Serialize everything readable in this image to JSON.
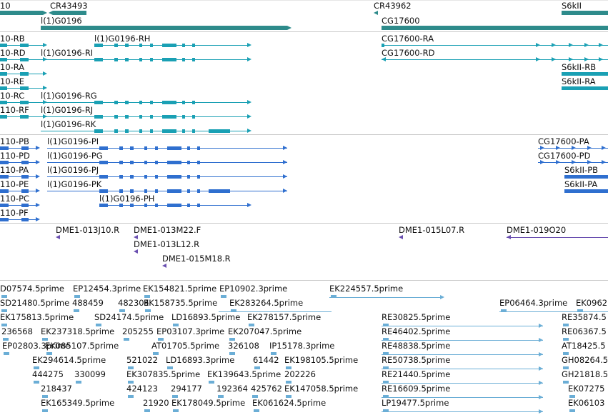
{
  "colors": {
    "gene": "#2e8b8b",
    "teal": "#1aa0b4",
    "blue": "#2f6fcf",
    "purple": "#6a4fb0",
    "est": "#6baed6",
    "sep": "#c8c8c8"
  },
  "genes": [
    {
      "label": "10",
      "name": "gene-10"
    },
    {
      "label": "CR43493",
      "name": "gene-cr43493"
    },
    {
      "label": "l(1)G0196",
      "name": "gene-l1g0196"
    },
    {
      "label": "CR43962",
      "name": "gene-cr43962"
    },
    {
      "label": "CG17600",
      "name": "gene-cg17600"
    },
    {
      "label": "S6kII",
      "name": "gene-s6kii"
    }
  ],
  "transcripts_teal": [
    {
      "label": "10-RB"
    },
    {
      "label": "l(1)G0196-RH"
    },
    {
      "label": "CG17600-RA"
    },
    {
      "label": "10-RD"
    },
    {
      "label": "l(1)G0196-RI"
    },
    {
      "label": "CG17600-RD"
    },
    {
      "label": "10-RA"
    },
    {
      "label": "S6kII-RB"
    },
    {
      "label": "10-RE"
    },
    {
      "label": "S6kII-RA"
    },
    {
      "label": "10-RC"
    },
    {
      "label": "l(1)G0196-RG"
    },
    {
      "label": "110-RF"
    },
    {
      "label": "l(1)G0196-RJ"
    },
    {
      "label": "l(1)G0196-RK"
    }
  ],
  "transcripts_blue": [
    {
      "label": "110-PB"
    },
    {
      "label": "l(1)G0196-PI"
    },
    {
      "label": "CG17600-PA"
    },
    {
      "label": "110-PD"
    },
    {
      "label": "l(1)G0196-PG"
    },
    {
      "label": "CG17600-PD"
    },
    {
      "label": "110-PA"
    },
    {
      "label": "l(1)G0196-PJ"
    },
    {
      "label": "S6kII-PB"
    },
    {
      "label": "110-PE"
    },
    {
      "label": "l(1)G0196-PK"
    },
    {
      "label": "S6kII-PA"
    },
    {
      "label": "110-PC"
    },
    {
      "label": "l(1)G0196-PH"
    },
    {
      "label": "110-PF"
    }
  ],
  "clones": [
    {
      "label": "DME1-013J10.R"
    },
    {
      "label": "DME1-013M22.F"
    },
    {
      "label": "DME1-013L12.R"
    },
    {
      "label": "DME1-015M18.R"
    },
    {
      "label": "DME1-015L07.R"
    },
    {
      "label": "DME1-019O20"
    }
  ],
  "ests": [
    {
      "label": "D07574.5prime"
    },
    {
      "label": "EP12454.3prime"
    },
    {
      "label": "EK154821.5prime"
    },
    {
      "label": "EP10902.3prime"
    },
    {
      "label": "EK224557.5prime"
    },
    {
      "label": "SD21480.5prime"
    },
    {
      "label": "488459"
    },
    {
      "label": "482304"
    },
    {
      "label": "EK158735.5prime"
    },
    {
      "label": "EK283264.5prime"
    },
    {
      "label": "EP06464.3prime"
    },
    {
      "label": "EK0962"
    },
    {
      "label": "EK175813.5prime"
    },
    {
      "label": "SD24174.5prime"
    },
    {
      "label": "LD16893.5prime"
    },
    {
      "label": "EK278157.5prime"
    },
    {
      "label": "RE30825.5prime"
    },
    {
      "label": "RE35874.5"
    },
    {
      "label": "236568"
    },
    {
      "label": "EK237318.5prime"
    },
    {
      "label": "205255"
    },
    {
      "label": "EP03107.3prime"
    },
    {
      "label": "EK207047.5prime"
    },
    {
      "label": "RE46402.5prime"
    },
    {
      "label": "RE06367.5"
    },
    {
      "label": "EP02803.3prime"
    },
    {
      "label": "EK085107.5prime"
    },
    {
      "label": "AT01705.5prime"
    },
    {
      "label": "326108"
    },
    {
      "label": "IP15178.3prime"
    },
    {
      "label": "RE48838.5prime"
    },
    {
      "label": "AT18425.5"
    },
    {
      "label": "EK294614.5prime"
    },
    {
      "label": "521022"
    },
    {
      "label": "LD16893.3prime"
    },
    {
      "label": "61442"
    },
    {
      "label": "EK198105.5prime"
    },
    {
      "label": "RE50738.5prime"
    },
    {
      "label": "GH08264.5"
    },
    {
      "label": "444275"
    },
    {
      "label": "330099"
    },
    {
      "label": "EK307835.5prime"
    },
    {
      "label": "EK139643.5prime"
    },
    {
      "label": "202226"
    },
    {
      "label": "RE21440.5prime"
    },
    {
      "label": "GH21818.5"
    },
    {
      "label": "218437"
    },
    {
      "label": "424123"
    },
    {
      "label": "294177"
    },
    {
      "label": "192364"
    },
    {
      "label": "425762"
    },
    {
      "label": "EK147058.5prime"
    },
    {
      "label": "RE16609.5prime"
    },
    {
      "label": "EK07275"
    },
    {
      "label": "EK165349.5prime"
    },
    {
      "label": "21920"
    },
    {
      "label": "EK178049.5prime"
    },
    {
      "label": "EK061624.5prime"
    },
    {
      "label": "LP19477.5prime"
    },
    {
      "label": "EK06103"
    }
  ]
}
